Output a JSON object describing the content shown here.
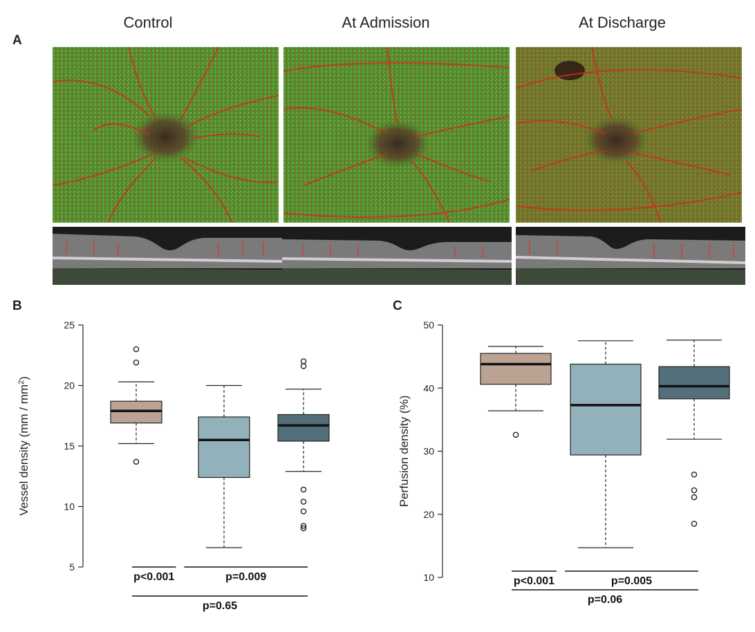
{
  "panel_labels": {
    "a": "A",
    "b": "B",
    "c": "C"
  },
  "columns": [
    "Control",
    "At Admission",
    "At Discharge"
  ],
  "colors": {
    "control": "#bba393",
    "admission": "#93b1ba",
    "discharge": "#53707a",
    "fundus_green": "#3f8a2c",
    "vessel_red": "#d42a1c"
  },
  "chart_data": [
    {
      "type": "box",
      "panel": "B",
      "ylabel": "Vessel density (mm / mm",
      "ylabel_sup": "2",
      "ylabel_close": ")",
      "ylim": [
        5,
        25
      ],
      "yticks": [
        5,
        10,
        15,
        20,
        25
      ],
      "series": [
        {
          "name": "Control",
          "color": "#bba393",
          "whisker_low": 15.2,
          "q1": 16.9,
          "median": 17.9,
          "q3": 18.7,
          "whisker_high": 20.3,
          "outliers": [
            13.7,
            21.9,
            23.0
          ]
        },
        {
          "name": "At Admission",
          "color": "#93b1ba",
          "whisker_low": 6.6,
          "q1": 12.4,
          "median": 15.5,
          "q3": 17.4,
          "whisker_high": 20.0,
          "outliers": []
        },
        {
          "name": "At Discharge",
          "color": "#53707a",
          "whisker_low": 12.9,
          "q1": 15.4,
          "median": 16.7,
          "q3": 17.6,
          "whisker_high": 19.7,
          "outliers": [
            8.2,
            8.4,
            9.6,
            10.4,
            11.4,
            21.6,
            22.0
          ]
        }
      ],
      "comparisons": [
        {
          "label": "p<0.001",
          "from": 0,
          "to": 1,
          "level": 0
        },
        {
          "label": "p=0.009",
          "from": 1,
          "to": 2,
          "level": 0
        },
        {
          "label": "p=0.65",
          "from": 0,
          "to": 2,
          "level": 1
        }
      ]
    },
    {
      "type": "box",
      "panel": "C",
      "ylabel": "Perfusion density (%)",
      "ylim": [
        10,
        50
      ],
      "yticks": [
        10,
        20,
        30,
        40,
        50
      ],
      "series": [
        {
          "name": "Control",
          "color": "#bba393",
          "whisker_low": 36.4,
          "q1": 40.6,
          "median": 43.8,
          "q3": 45.5,
          "whisker_high": 46.6,
          "outliers": [
            32.6
          ]
        },
        {
          "name": "At Admission",
          "color": "#93b1ba",
          "whisker_low": 14.7,
          "q1": 29.4,
          "median": 37.3,
          "q3": 43.8,
          "whisker_high": 47.5,
          "outliers": []
        },
        {
          "name": "At Discharge",
          "color": "#53707a",
          "whisker_low": 31.9,
          "q1": 38.3,
          "median": 40.3,
          "q3": 43.4,
          "whisker_high": 47.6,
          "outliers": [
            18.5,
            22.7,
            23.8,
            26.3
          ]
        }
      ],
      "comparisons": [
        {
          "label": "p<0.001",
          "from": 0,
          "to": 1,
          "level": 0
        },
        {
          "label": "p=0.005",
          "from": 1,
          "to": 2,
          "level": 0
        },
        {
          "label": "p=0.06",
          "from": 0,
          "to": 2,
          "level": 1
        }
      ]
    }
  ]
}
